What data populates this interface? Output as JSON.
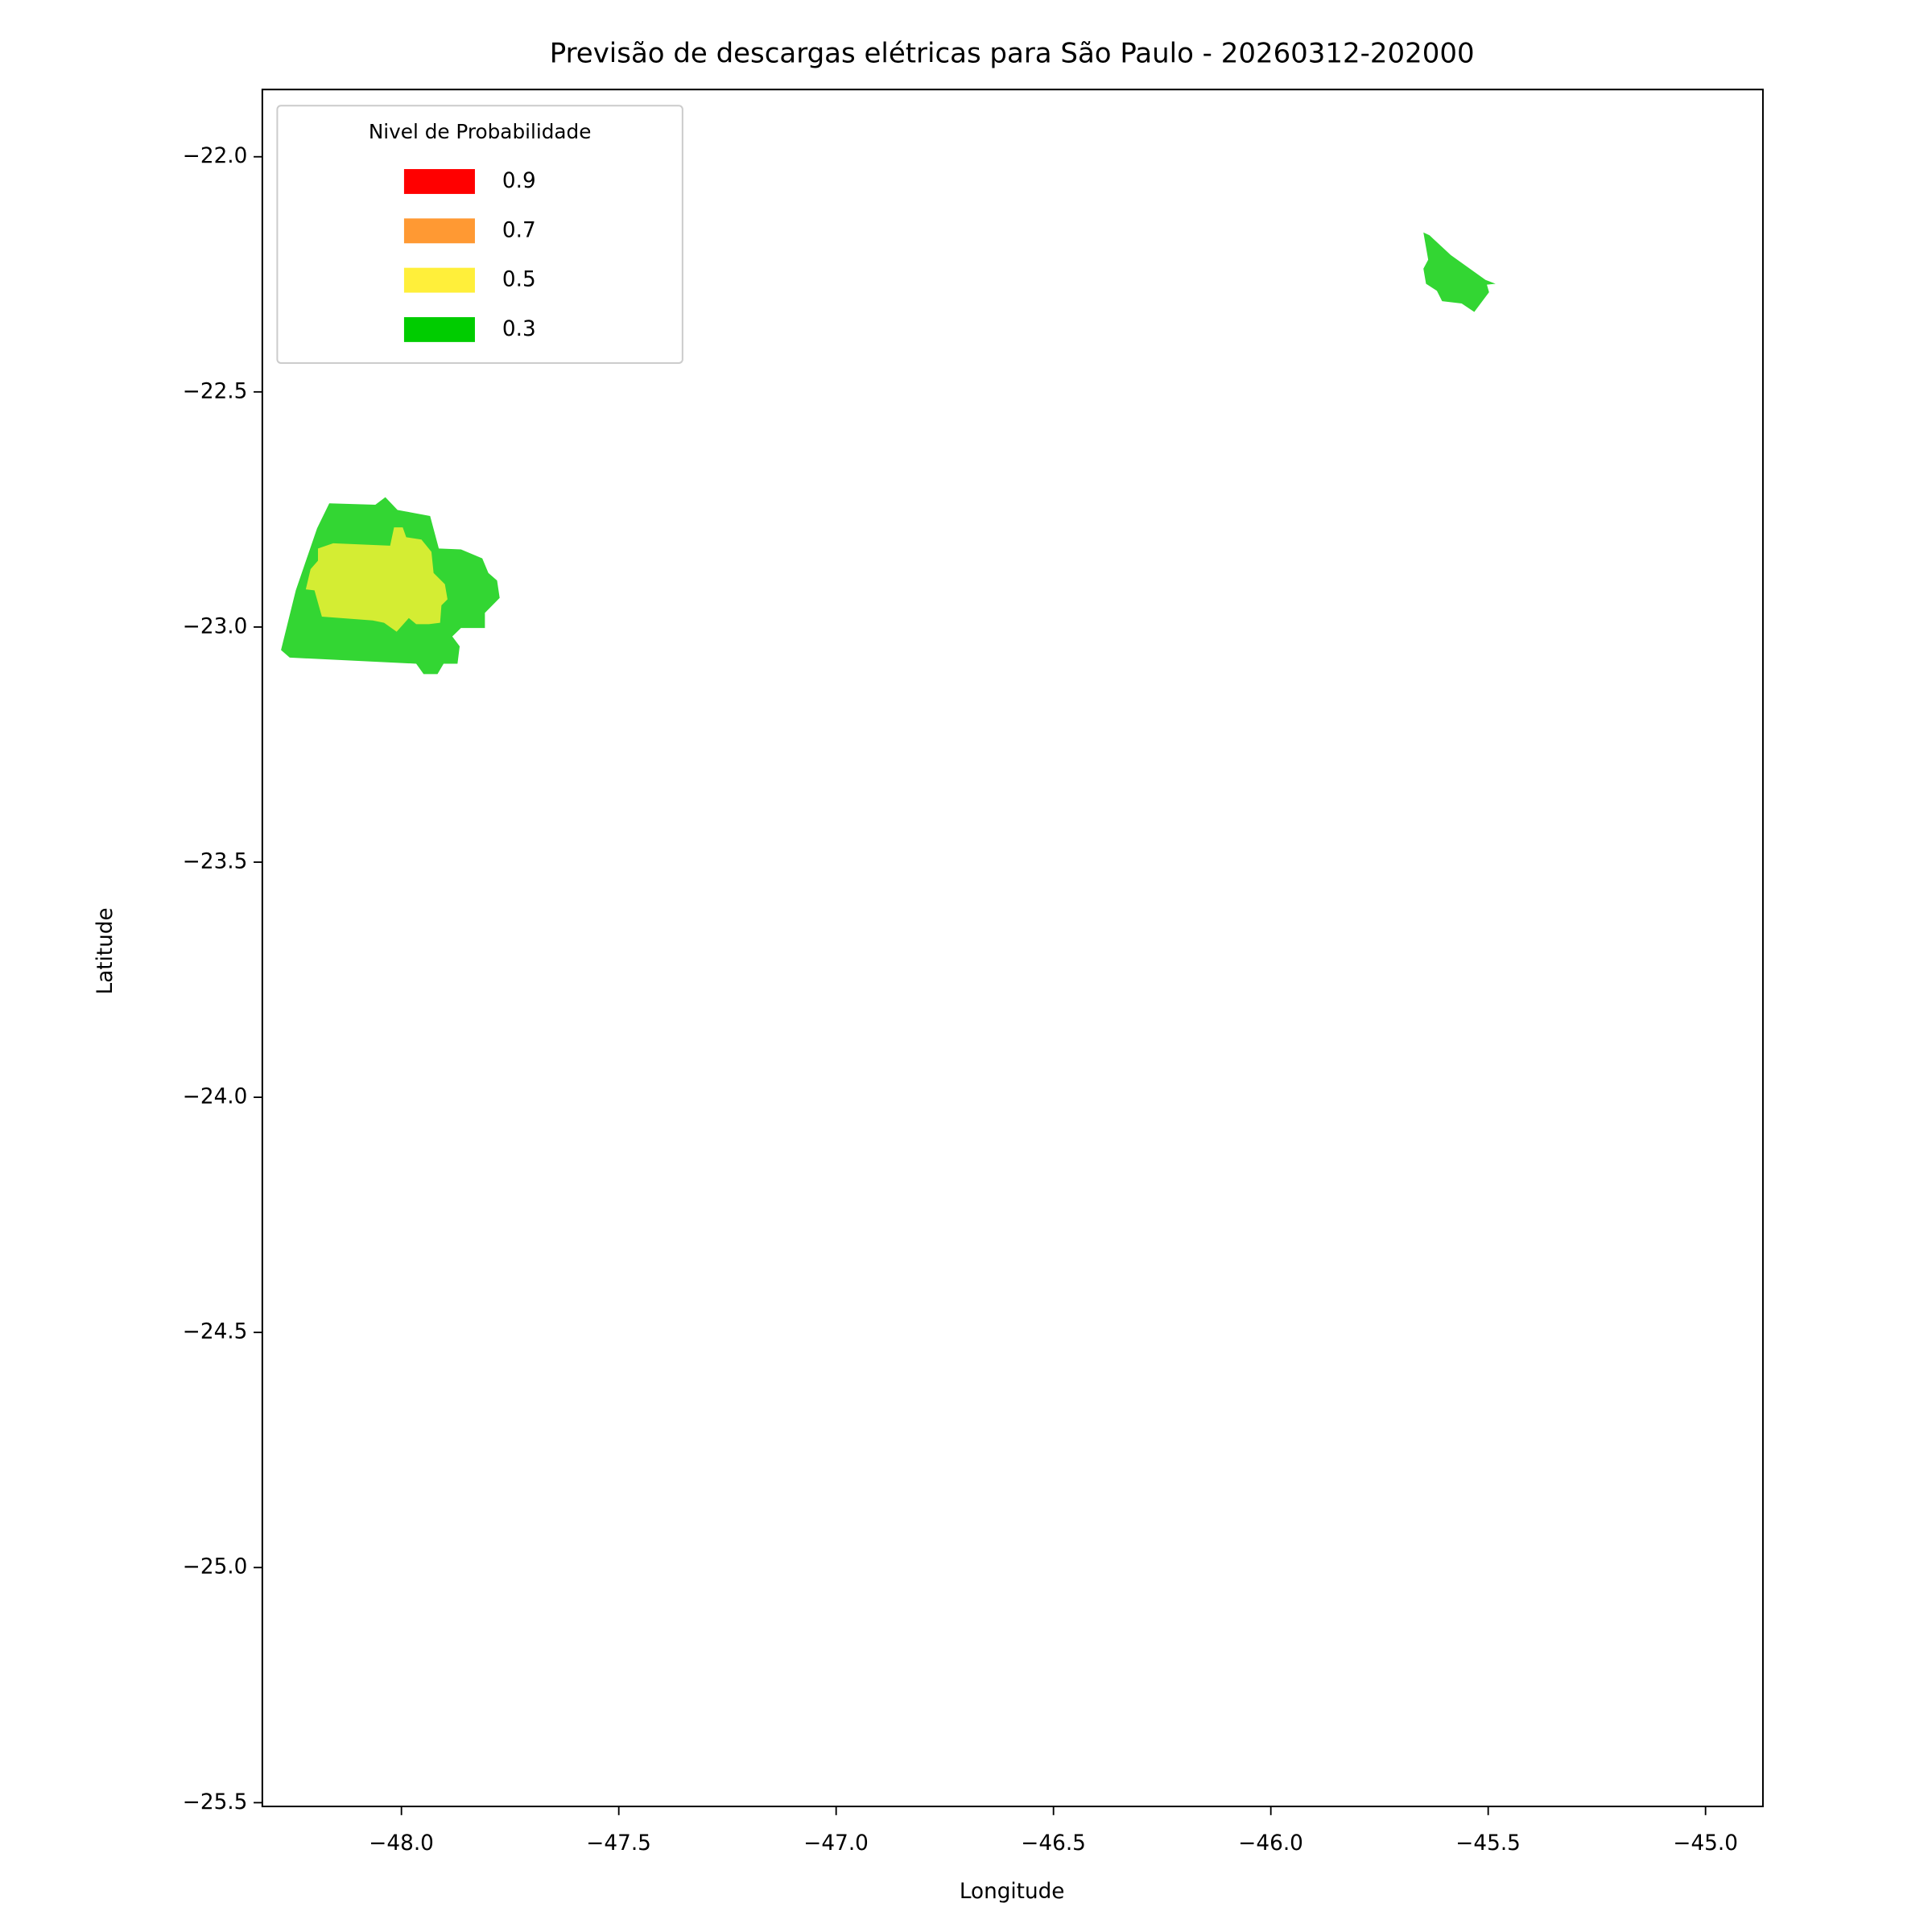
{
  "chart_data": {
    "type": "contour-map",
    "title": "Previsão de descargas elétricas para São Paulo - 20260312-202000",
    "x_label": "Longitude",
    "y_label": "Latitude",
    "xlim": [
      -48.32,
      -44.868
    ],
    "ylim": [
      -25.508,
      -21.857
    ],
    "xticks": [
      {
        "value": -48,
        "label": "−48.0"
      },
      {
        "value": -47.5,
        "label": "−47.5"
      },
      {
        "value": -47,
        "label": "−47.0"
      },
      {
        "value": -46.5,
        "label": "−46.5"
      },
      {
        "value": -46,
        "label": "−46.0"
      },
      {
        "value": -45.5,
        "label": "−45.5"
      },
      {
        "value": -45,
        "label": "−45.0"
      }
    ],
    "yticks": [
      {
        "value": -22,
        "label": "−22.0"
      },
      {
        "value": -22.5,
        "label": "−22.5"
      },
      {
        "value": -23,
        "label": "−23.0"
      },
      {
        "value": -23.5,
        "label": "−23.5"
      },
      {
        "value": -24,
        "label": "−24.0"
      },
      {
        "value": -24.5,
        "label": "−24.5"
      },
      {
        "value": -25,
        "label": "−25.0"
      },
      {
        "value": -25.5,
        "label": "−25.5"
      }
    ],
    "legend_title": "Nivel de Probabilidade",
    "legend_position": "upper left",
    "levels": [
      {
        "name": "0.9",
        "color": "#ff0000"
      },
      {
        "name": "0.7",
        "color": "#ff9933"
      },
      {
        "name": "0.5",
        "color": "#ffef3a"
      },
      {
        "name": "0.3",
        "color": "#00cc00"
      }
    ],
    "polygons": [
      {
        "color": "#33d633",
        "lon": [
          -48.277,
          -48.257,
          -47.966,
          -47.949,
          -47.917,
          -47.903,
          -47.871,
          -47.866,
          -47.883,
          -47.863,
          -47.808,
          -47.808,
          -47.774,
          -47.78,
          -47.8,
          -47.814,
          -47.863,
          -47.914,
          -47.934,
          -48.009,
          -48.037,
          -48.06,
          -48.166,
          -48.194,
          -48.243
        ],
        "lat": [
          -23.049,
          -23.065,
          -23.078,
          -23.1,
          -23.1,
          -23.078,
          -23.078,
          -23.041,
          -23.02,
          -23.002,
          -23.002,
          -22.97,
          -22.938,
          -22.901,
          -22.885,
          -22.854,
          -22.835,
          -22.833,
          -22.764,
          -22.751,
          -22.724,
          -22.74,
          -22.737,
          -22.79,
          -22.922
        ]
      },
      {
        "color": "#d4ed33",
        "lon": [
          -48.22,
          -48.209,
          -48.192,
          -48.192,
          -48.157,
          -48.026,
          -48.017,
          -47.997,
          -47.989,
          -47.954,
          -47.931,
          -47.926,
          -47.9,
          -47.894,
          -47.908,
          -47.911,
          -47.937,
          -47.966,
          -47.983,
          -48.011,
          -48.04,
          -48.066,
          -48.183,
          -48.2
        ],
        "lat": [
          -22.92,
          -22.877,
          -22.859,
          -22.833,
          -22.822,
          -22.827,
          -22.788,
          -22.788,
          -22.809,
          -22.814,
          -22.84,
          -22.885,
          -22.909,
          -22.941,
          -22.954,
          -22.991,
          -22.994,
          -22.994,
          -22.981,
          -23.01,
          -22.991,
          -22.986,
          -22.978,
          -22.922
        ]
      },
      {
        "color": "#33d633",
        "lon": [
          -45.649,
          -45.635,
          -45.586,
          -45.506,
          -45.483,
          -45.503,
          -45.498,
          -45.532,
          -45.561,
          -45.606,
          -45.618,
          -45.643,
          -45.649,
          -45.638
        ],
        "lat": [
          -22.161,
          -22.167,
          -22.209,
          -22.262,
          -22.27,
          -22.272,
          -22.288,
          -22.33,
          -22.312,
          -22.307,
          -22.285,
          -22.27,
          -22.238,
          -22.219
        ]
      }
    ]
  }
}
